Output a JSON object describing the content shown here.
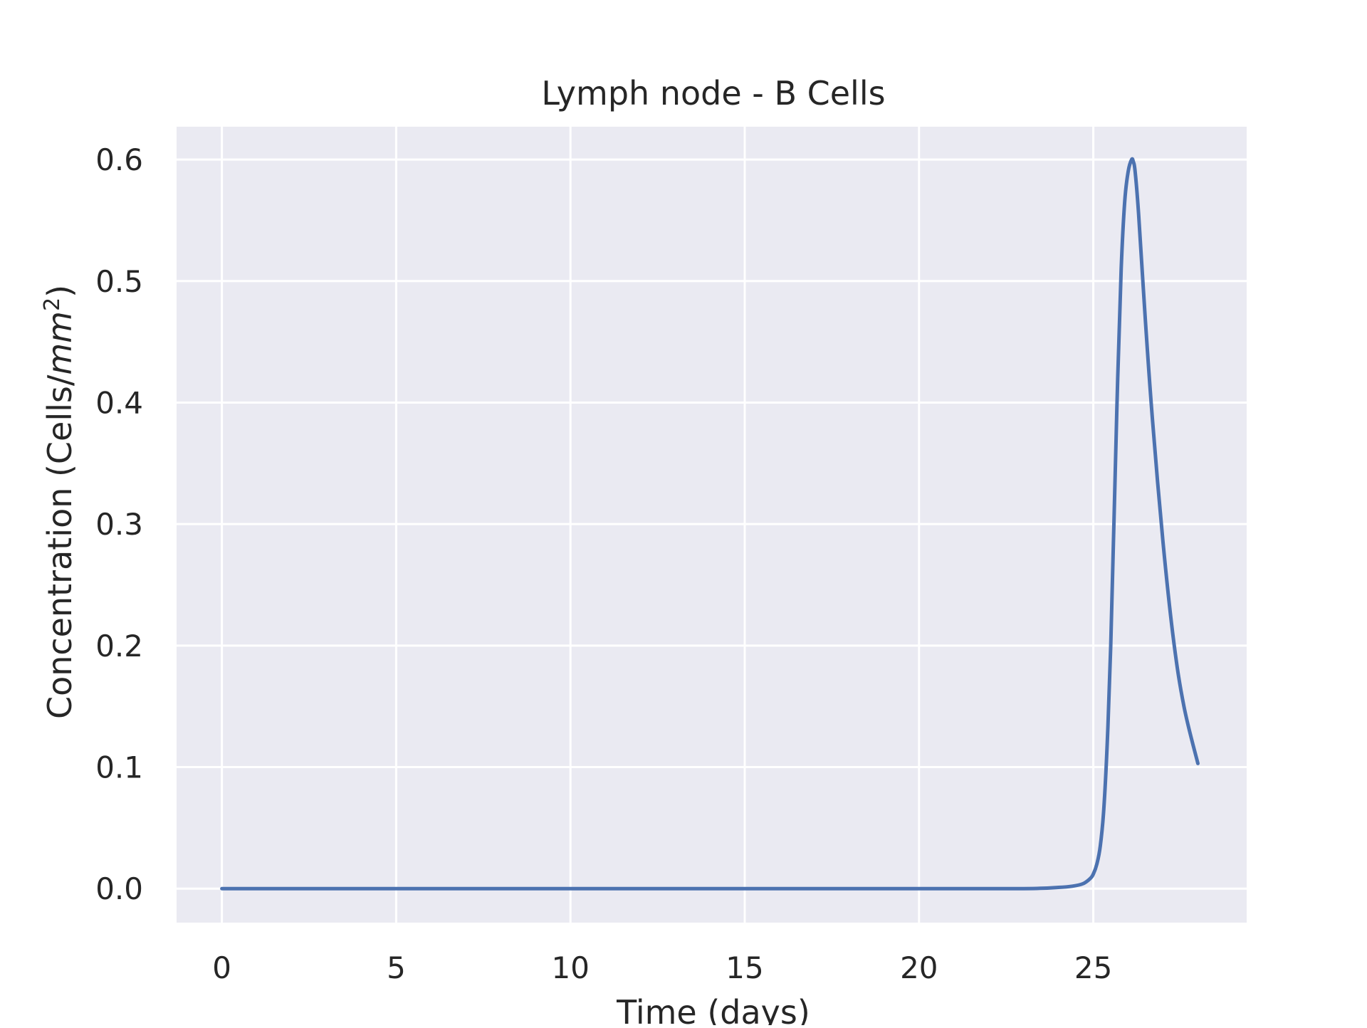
{
  "chart_data": {
    "type": "line",
    "title": "Lymph node - B Cells",
    "xlabel": "Time (days)",
    "ylabel": {
      "prefix": "Concentration (Cells/",
      "unit": "mm",
      "exponent": "2",
      "suffix": ")"
    },
    "xlim": [
      -1.3,
      29.4
    ],
    "ylim": [
      -0.028,
      0.627
    ],
    "xticks": [
      0,
      5,
      10,
      15,
      20,
      25
    ],
    "xtick_labels": [
      "0",
      "5",
      "10",
      "15",
      "20",
      "25"
    ],
    "yticks": [
      0.0,
      0.1,
      0.2,
      0.3,
      0.4,
      0.5,
      0.6
    ],
    "ytick_labels": [
      "0.0",
      "0.1",
      "0.2",
      "0.3",
      "0.4",
      "0.5",
      "0.6"
    ],
    "grid": true,
    "style": "seaborn-darkgrid",
    "colors": {
      "axes_background": "#EAEAF2",
      "grid": "#FFFFFF",
      "line": "#4C72B0",
      "text": "#262626"
    },
    "series": [
      {
        "x": [
          0,
          5,
          10,
          15,
          20,
          23,
          24,
          24.4,
          24.7,
          24.9,
          25.0,
          25.1,
          25.2,
          25.3,
          25.4,
          25.5,
          25.6,
          25.7,
          25.8,
          25.9,
          26.0,
          26.1,
          26.15,
          26.2,
          26.3,
          26.5,
          26.7,
          27.0,
          27.3,
          27.6,
          28.0
        ],
        "y": [
          0.0,
          0.0,
          0.0,
          0.0,
          0.0,
          0.0,
          0.001,
          0.002,
          0.004,
          0.008,
          0.012,
          0.02,
          0.035,
          0.065,
          0.12,
          0.2,
          0.31,
          0.42,
          0.51,
          0.565,
          0.59,
          0.6,
          0.598,
          0.59,
          0.555,
          0.465,
          0.385,
          0.285,
          0.205,
          0.15,
          0.103
        ]
      }
    ]
  }
}
